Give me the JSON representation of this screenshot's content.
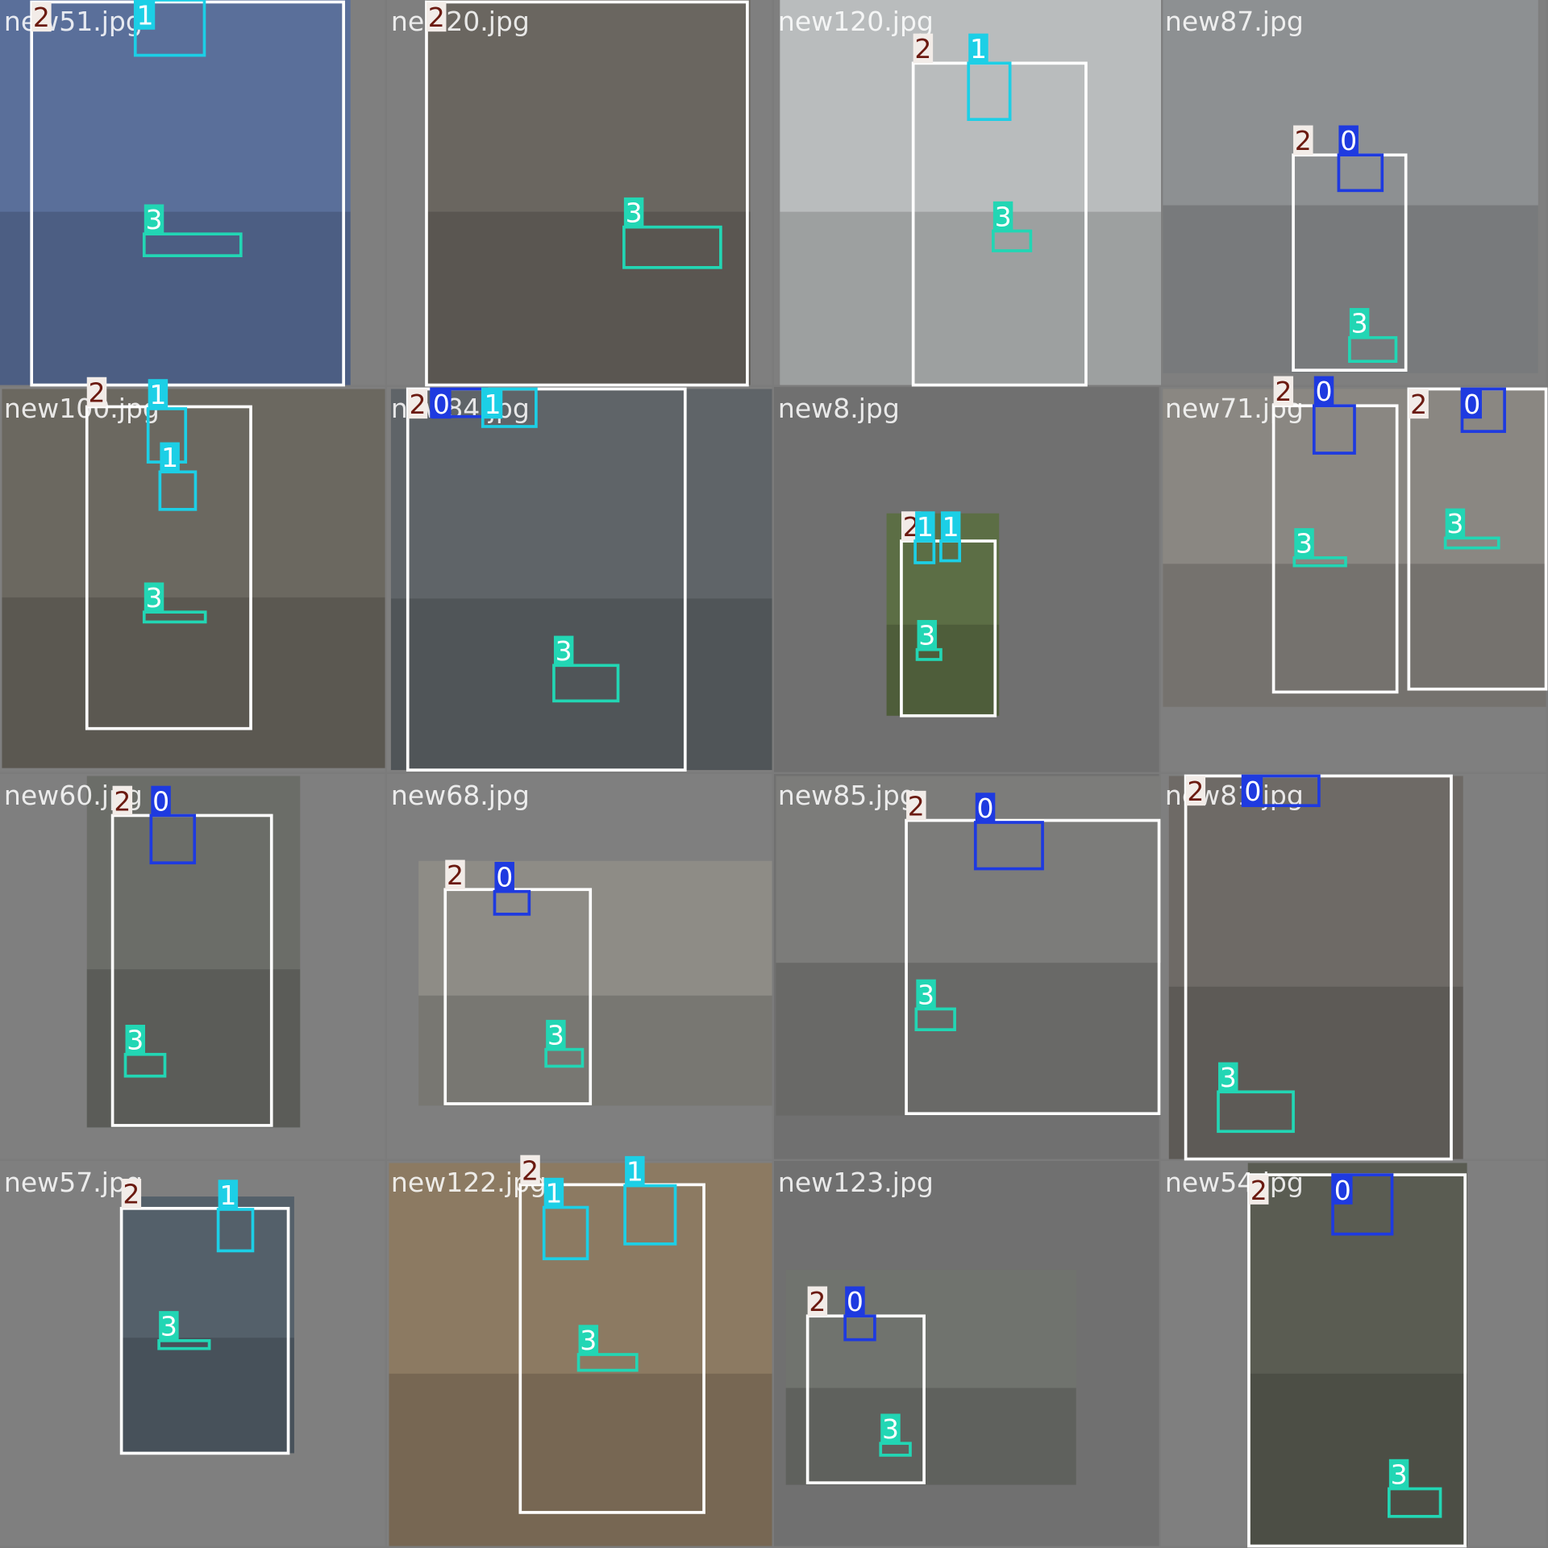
{
  "tiles": [
    {
      "filename": "new51.jpg",
      "boxes": [
        {
          "label": "2"
        },
        {
          "label": "1"
        },
        {
          "label": "3"
        }
      ]
    },
    {
      "filename": "new20.jpg",
      "boxes": [
        {
          "label": "2"
        },
        {
          "label": "3"
        }
      ]
    },
    {
      "filename": "new120.jpg",
      "boxes": [
        {
          "label": "2"
        },
        {
          "label": "1"
        },
        {
          "label": "3"
        }
      ]
    },
    {
      "filename": "new87.jpg",
      "boxes": [
        {
          "label": "2"
        },
        {
          "label": "0"
        },
        {
          "label": "3"
        }
      ]
    },
    {
      "filename": "new100.jpg",
      "boxes": [
        {
          "label": "2"
        },
        {
          "label": "1"
        },
        {
          "label": "1"
        },
        {
          "label": "3"
        }
      ]
    },
    {
      "filename": "new84.jpg",
      "boxes": [
        {
          "label": "2"
        },
        {
          "label": "0"
        },
        {
          "label": "1"
        },
        {
          "label": "3"
        }
      ]
    },
    {
      "filename": "new8.jpg",
      "boxes": [
        {
          "label": "2"
        },
        {
          "label": "1"
        },
        {
          "label": "1"
        },
        {
          "label": "3"
        }
      ]
    },
    {
      "filename": "new71.jpg",
      "boxes": [
        {
          "label": "2"
        },
        {
          "label": "0"
        },
        {
          "label": "2"
        },
        {
          "label": "0"
        },
        {
          "label": "3"
        },
        {
          "label": "3"
        }
      ]
    },
    {
      "filename": "new60.jpg",
      "boxes": [
        {
          "label": "2"
        },
        {
          "label": "0"
        },
        {
          "label": "3"
        }
      ]
    },
    {
      "filename": "new68.jpg",
      "boxes": [
        {
          "label": "2"
        },
        {
          "label": "0"
        },
        {
          "label": "3"
        }
      ]
    },
    {
      "filename": "new85.jpg",
      "boxes": [
        {
          "label": "2"
        },
        {
          "label": "0"
        },
        {
          "label": "3"
        }
      ]
    },
    {
      "filename": "new81.jpg",
      "boxes": [
        {
          "label": "2"
        },
        {
          "label": "0"
        },
        {
          "label": "3"
        }
      ]
    },
    {
      "filename": "new57.jpg",
      "boxes": [
        {
          "label": "2"
        },
        {
          "label": "1"
        },
        {
          "label": "3"
        }
      ]
    },
    {
      "filename": "new122.jpg",
      "boxes": [
        {
          "label": "2"
        },
        {
          "label": "1"
        },
        {
          "label": "1"
        },
        {
          "label": "3"
        }
      ]
    },
    {
      "filename": "new123.jpg",
      "boxes": [
        {
          "label": "2"
        },
        {
          "label": "0"
        },
        {
          "label": "3"
        }
      ]
    },
    {
      "filename": "new54.jpg",
      "boxes": [
        {
          "label": "2"
        },
        {
          "label": "0"
        },
        {
          "label": "3"
        }
      ]
    }
  ]
}
